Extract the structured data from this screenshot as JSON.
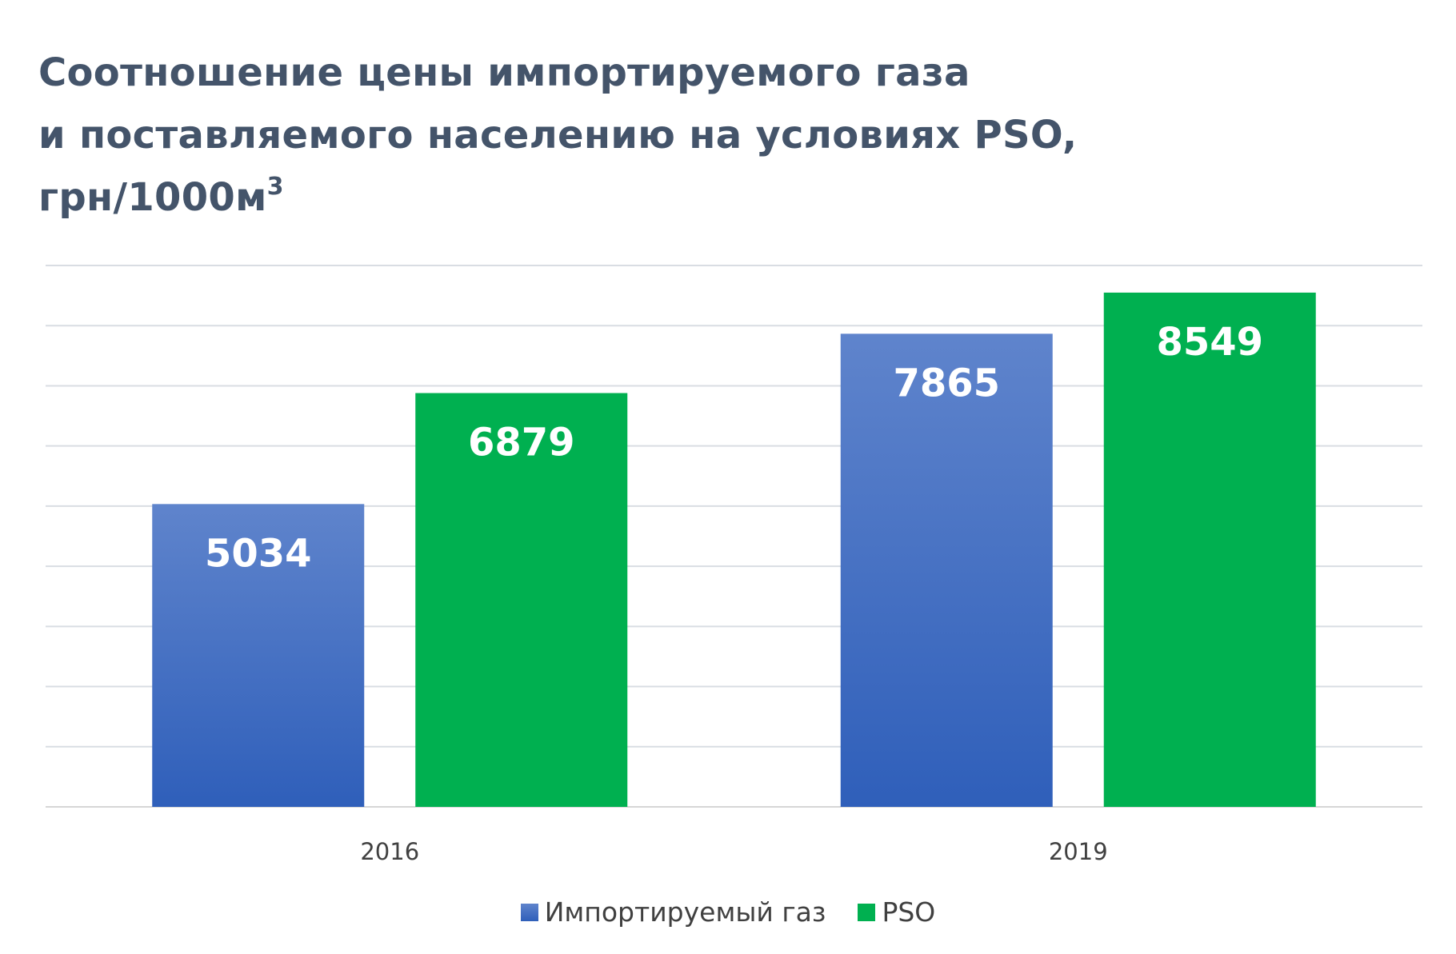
{
  "chart_data": {
    "type": "bar",
    "title_lines": [
      "Соотношение цены импортируемого газа",
      "и поставляемого населению на условиях PSO,",
      "грн/1000м"
    ],
    "title_superscript": "3",
    "categories": [
      "2016",
      "2019"
    ],
    "series": [
      {
        "name": "Импортируемый газ",
        "values": [
          5034,
          7865
        ],
        "color": "#4472c4",
        "color_light": "#5f84cc",
        "color_dark": "#2f5fba"
      },
      {
        "name": "PSO",
        "values": [
          6879,
          8549
        ],
        "color": "#00b050"
      }
    ],
    "ylim": [
      0,
      9000
    ],
    "y_gridline_step": 1000,
    "grid": true,
    "data_labels": "inside-top",
    "legend": "bottom"
  }
}
